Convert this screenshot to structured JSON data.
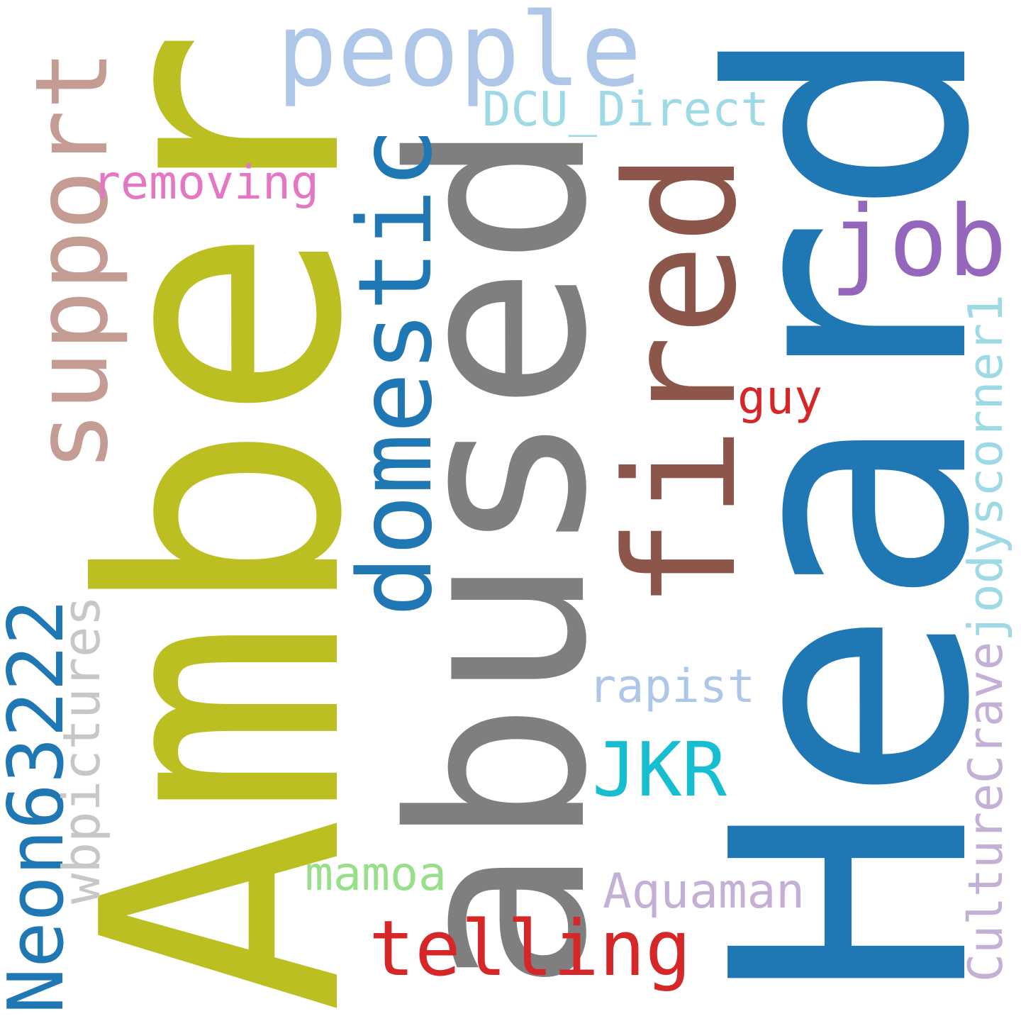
{
  "words": [
    {
      "text": "Amber",
      "color": "#bcbf22"
    },
    {
      "text": "Heard",
      "color": "#1f77b4"
    },
    {
      "text": "abused",
      "color": "#7f7f7f"
    },
    {
      "text": "fired",
      "color": "#8c564b"
    },
    {
      "text": "support",
      "color": "#c49c94"
    },
    {
      "text": "domestic",
      "color": "#1f77b4"
    },
    {
      "text": "Neon63222",
      "color": "#1f77b4"
    },
    {
      "text": "wbpictures",
      "color": "#c7c7c7"
    },
    {
      "text": "CultureCrave",
      "color": "#c5b0d5"
    },
    {
      "text": "jodyscorner1",
      "color": "#9edae5"
    },
    {
      "text": "people",
      "color": "#aec7e8"
    },
    {
      "text": "DCU_Direct",
      "color": "#9edae5"
    },
    {
      "text": "removing",
      "color": "#e377c2"
    },
    {
      "text": "job",
      "color": "#9467bd"
    },
    {
      "text": "guy",
      "color": "#d62728"
    },
    {
      "text": "rapist",
      "color": "#aec7e8"
    },
    {
      "text": "JKR",
      "color": "#17becf"
    },
    {
      "text": "mamoa",
      "color": "#98df8a"
    },
    {
      "text": "Aquaman",
      "color": "#c5b0d5"
    },
    {
      "text": "telling",
      "color": "#d62728"
    }
  ]
}
